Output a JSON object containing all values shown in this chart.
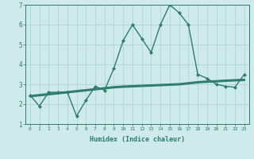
{
  "xlabel": "Humidex (Indice chaleur)",
  "x": [
    0,
    1,
    2,
    3,
    4,
    5,
    6,
    7,
    8,
    9,
    10,
    11,
    12,
    13,
    14,
    15,
    16,
    17,
    18,
    19,
    20,
    21,
    22,
    23
  ],
  "y_curve": [
    2.45,
    1.9,
    2.6,
    2.6,
    2.6,
    1.4,
    2.2,
    2.9,
    2.7,
    3.8,
    5.2,
    6.0,
    5.3,
    4.6,
    6.0,
    7.0,
    6.6,
    6.0,
    3.5,
    3.3,
    3.0,
    2.9,
    2.85,
    3.5
  ],
  "y_trend": [
    2.4,
    2.45,
    2.5,
    2.55,
    2.6,
    2.65,
    2.7,
    2.75,
    2.8,
    2.85,
    2.88,
    2.9,
    2.92,
    2.94,
    2.96,
    2.98,
    3.0,
    3.05,
    3.1,
    3.13,
    3.15,
    3.18,
    3.2,
    3.22
  ],
  "ylim": [
    1,
    7
  ],
  "xlim": [
    -0.5,
    23.5
  ],
  "line_color": "#2e7d6e",
  "bg_color": "#ceeaea",
  "grid_color": "#afd4d4",
  "tick_color": "#2e7d6e",
  "spine_color": "#2e7d6e"
}
